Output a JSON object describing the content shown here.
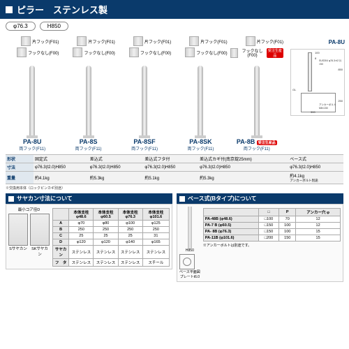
{
  "header": {
    "title": "ピラー　ステンレス製"
  },
  "specs": {
    "diameter": "φ76.3",
    "height": "H850"
  },
  "hook_labels": {
    "side": "片フック(F01)",
    "none": "フックなし(F00)"
  },
  "side_code": "PA-8U",
  "badge": "受注生産品",
  "products": [
    {
      "code": "PA-8U",
      "sub": "両フック(F11)",
      "shape": "固定式",
      "dim": "φ76.3(t2.0)H850",
      "weight": "約4.1kg"
    },
    {
      "code": "PA-8S",
      "sub": "両フック(F11)",
      "shape": "差込式",
      "dim": "φ76.3(t2.0)H850",
      "weight": "約5.3kg"
    },
    {
      "code": "PA-8SF",
      "sub": "両フック(F11)",
      "shape": "差込式フタ付",
      "dim": "φ76.3(t2.0)H850",
      "weight": "約5.1kg"
    },
    {
      "code": "PA-8SK",
      "sub": "両フック(F11)",
      "shape": "差込式カギ付(南京錠25mm)",
      "dim": "φ76.3(t2.0)H850",
      "weight": "約5.3kg"
    },
    {
      "code": "PA-8B",
      "sub": "両フック(F11)",
      "shape": "ベース式",
      "dim": "φ76.3(t2.0)H850",
      "weight": "約4.1kg",
      "badge": true,
      "note": "アンカーボルト別途"
    }
  ],
  "spec_rows": {
    "shape": "形状",
    "dim": "寸法",
    "weight": "重量"
  },
  "footnote": "※交換用本体（ロックピンカギ別途）",
  "sayakan": {
    "title": "サヤカン寸法について",
    "corehead": "最小コア径D",
    "diag_labels": {
      "s": "Sサヤカン",
      "sk": "SKサヤカン"
    },
    "cols": [
      "本体支柱 φ48.6",
      "本体支柱 φ60.5",
      "本体支柱 φ76.3",
      "本体支柱 φ101.6"
    ],
    "rows": [
      {
        "h": "A",
        "c": [
          "φ70",
          "φ80",
          "φ100",
          "φ125"
        ]
      },
      {
        "h": "B",
        "c": [
          "250",
          "250",
          "250",
          "250"
        ]
      },
      {
        "h": "C",
        "c": [
          "25",
          "25",
          "25",
          "31"
        ]
      },
      {
        "h": "D",
        "c": [
          "φ120",
          "φ120",
          "φ140",
          "φ165"
        ]
      },
      {
        "h": "サヤカン",
        "c": [
          "ステンレス",
          "ステンレス",
          "ステンレス",
          "ステンレス"
        ]
      },
      {
        "h": "フ　タ",
        "c": [
          "ステンレス",
          "ステンレス",
          "ステンレス",
          "スチール"
        ]
      }
    ]
  },
  "base": {
    "title": "ベース式(Bタイプ)について",
    "diag_labels": {
      "h": "H850",
      "plan": "ベース平面図",
      "plate": "プレートt6.0"
    },
    "cols": [
      "□",
      "P",
      "アンカー穴 φ"
    ],
    "rows": [
      {
        "h": "PA-48B (φ48.6)",
        "c": [
          "□100",
          "70",
          "12"
        ]
      },
      {
        "h": "PA-7 B (φ60.5)",
        "c": [
          "□150",
          "100",
          "12"
        ]
      },
      {
        "h": "PA- 8B (φ76.3)",
        "c": [
          "□150",
          "100",
          "15"
        ]
      },
      {
        "h": "PA-11B (φ101.6)",
        "c": [
          "□200",
          "150",
          "15"
        ]
      }
    ],
    "note": "※アンカーボルトは別途です。"
  },
  "tech": {
    "labels": [
      "100",
      "8",
      "850",
      "250",
      "300",
      "GL",
      "SUS304 φ76.3×t2 片×50",
      "アンカーボルト M8×150"
    ]
  },
  "colors": {
    "navy": "#0a3a6b",
    "red": "#d00000"
  }
}
